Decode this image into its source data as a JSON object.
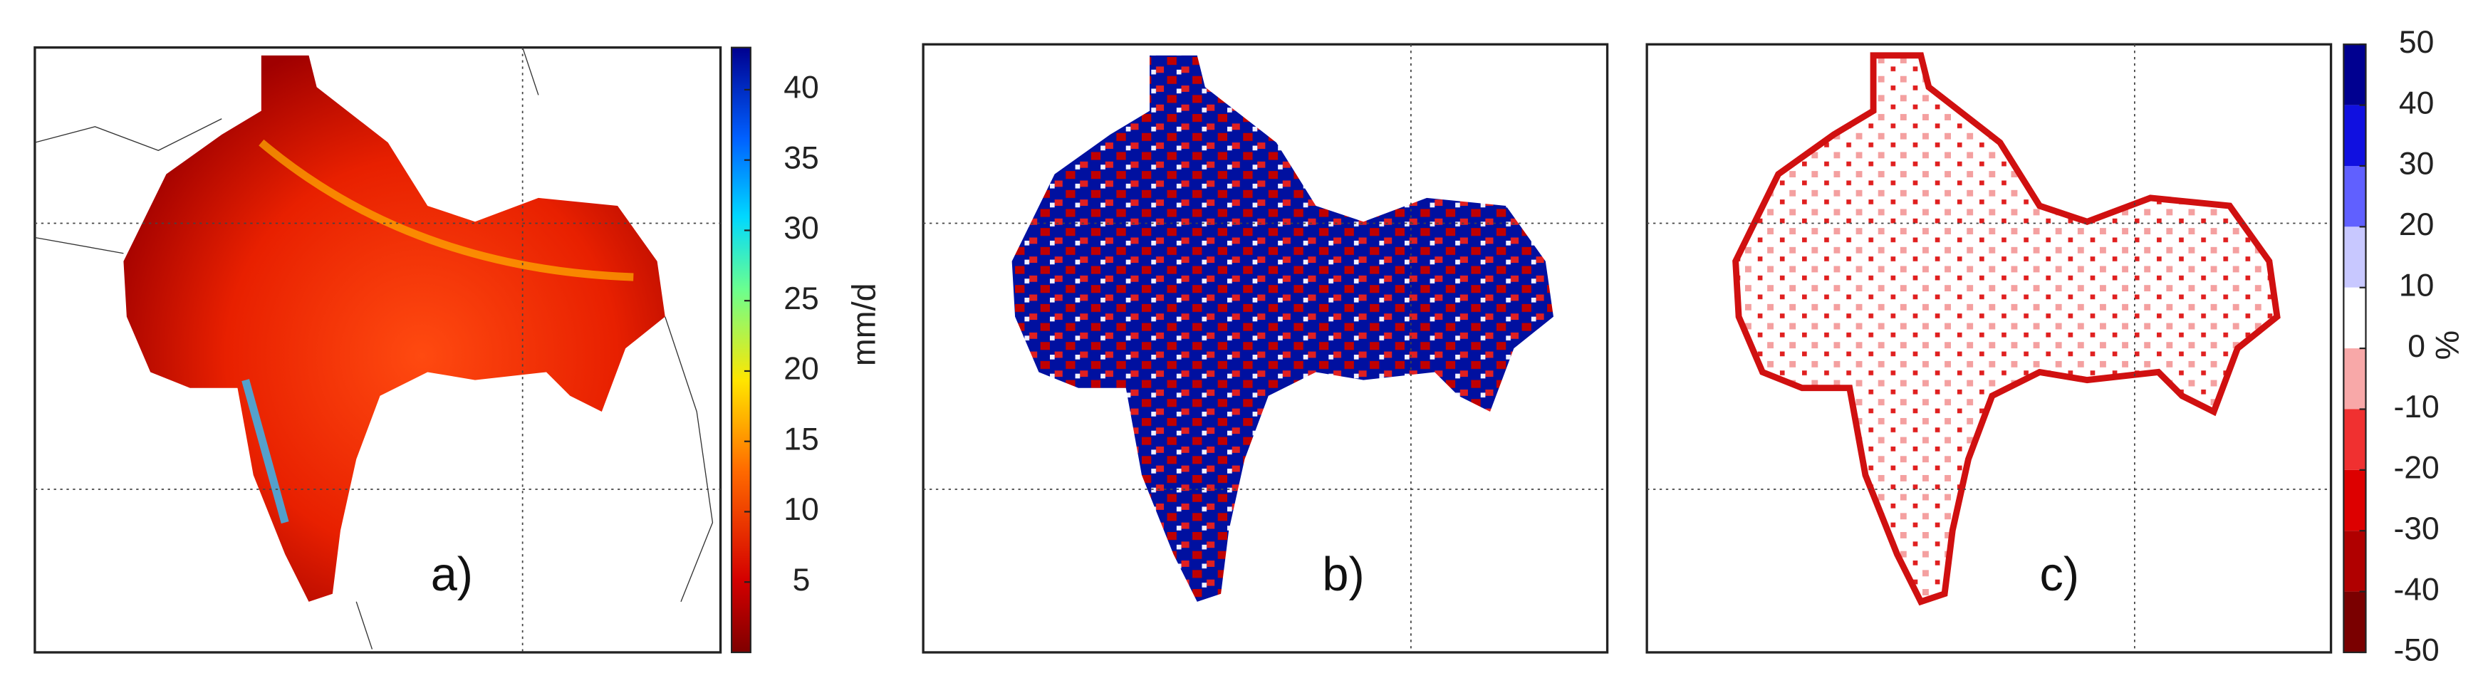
{
  "panels": [
    {
      "label": "a)"
    },
    {
      "label": "b)"
    },
    {
      "label": "c)"
    }
  ],
  "colorbars": [
    {
      "label": "mm/d",
      "lim": [
        0,
        43
      ],
      "ticks": [
        5,
        10,
        15,
        20,
        25,
        30,
        35,
        40
      ]
    },
    {
      "label": "%",
      "lim": [
        -50,
        50
      ],
      "ticks": [
        50,
        40,
        30,
        20,
        10,
        0,
        -10,
        -20,
        -30,
        -40,
        -50
      ]
    }
  ]
}
